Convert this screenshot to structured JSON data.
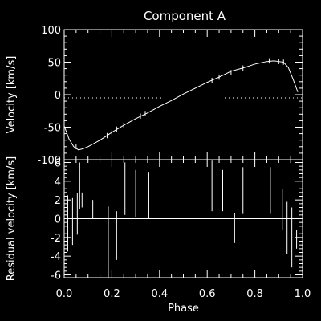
{
  "figure": {
    "title": "Component A",
    "background": "#000000",
    "foreground": "#ffffff"
  },
  "chart_data": [
    {
      "type": "line",
      "title": "Component A",
      "xlabel": "",
      "ylabel": "Velocity [km/s]",
      "xlim": [
        0.0,
        1.0
      ],
      "ylim": [
        -100,
        100
      ],
      "y_ticks": [
        -100,
        -50,
        0,
        50,
        100
      ],
      "x_ticks": [
        0.0,
        0.2,
        0.4,
        0.6,
        0.8,
        1.0
      ],
      "x_tick_labels_shown": false,
      "reference_line": {
        "y": -5,
        "style": "dotted"
      },
      "series": [
        {
          "values_x": [
            0.0,
            0.02,
            0.04,
            0.06,
            0.08,
            0.1,
            0.15,
            0.2,
            0.25,
            0.3,
            0.35,
            0.4,
            0.45,
            0.5,
            0.55,
            0.6,
            0.65,
            0.7,
            0.75,
            0.8,
            0.85,
            0.88,
            0.9,
            0.92,
            0.94,
            0.96,
            0.98
          ],
          "values_y": [
            -48,
            -68,
            -80,
            -85,
            -83,
            -80,
            -70,
            -58,
            -47,
            -37,
            -28,
            -18,
            -9,
            1,
            10,
            19,
            27,
            36,
            41,
            47,
            51,
            52,
            51,
            50,
            42,
            24,
            4
          ]
        }
      ],
      "error_bars": [
        {
          "x": 0.05,
          "y": -80,
          "err": 4
        },
        {
          "x": 0.18,
          "y": -63,
          "err": 4
        },
        {
          "x": 0.2,
          "y": -58,
          "err": 4
        },
        {
          "x": 0.22,
          "y": -53,
          "err": 4
        },
        {
          "x": 0.25,
          "y": -47,
          "err": 4
        },
        {
          "x": 0.32,
          "y": -33,
          "err": 4
        },
        {
          "x": 0.34,
          "y": -29,
          "err": 4
        },
        {
          "x": 0.62,
          "y": 22,
          "err": 4
        },
        {
          "x": 0.65,
          "y": 27,
          "err": 4
        },
        {
          "x": 0.7,
          "y": 34,
          "err": 4
        },
        {
          "x": 0.75,
          "y": 41,
          "err": 4
        },
        {
          "x": 0.86,
          "y": 52,
          "err": 4
        },
        {
          "x": 0.9,
          "y": 51,
          "err": 4
        },
        {
          "x": 0.92,
          "y": 50,
          "err": 4
        }
      ]
    },
    {
      "type": "scatter",
      "title": "",
      "xlabel": "Phase",
      "ylabel": "Residual velocity [km/s]",
      "xlim": [
        0.0,
        1.0
      ],
      "ylim": [
        -6.3,
        6.3
      ],
      "y_ticks": [
        -6,
        -4,
        -2,
        0,
        2,
        4,
        6
      ],
      "x_ticks": [
        0.0,
        0.2,
        0.4,
        0.6,
        0.8,
        1.0
      ],
      "reference_line": {
        "y": 0,
        "style": "solid"
      },
      "error_bars": [
        {
          "x": 0.015,
          "y": -0.5,
          "err": 3.0
        },
        {
          "x": 0.035,
          "y": -0.3,
          "err": 2.5
        },
        {
          "x": 0.055,
          "y": 0.5,
          "err": 2.2
        },
        {
          "x": 0.065,
          "y": 3.5,
          "err": 2.5
        },
        {
          "x": 0.075,
          "y": 2.0,
          "err": 0.8
        },
        {
          "x": 0.12,
          "y": 1.0,
          "err": 1.0
        },
        {
          "x": 0.185,
          "y": -2.5,
          "err": 3.8
        },
        {
          "x": 0.22,
          "y": -1.8,
          "err": 2.6
        },
        {
          "x": 0.255,
          "y": 3.2,
          "err": 2.8
        },
        {
          "x": 0.3,
          "y": 2.7,
          "err": 2.5
        },
        {
          "x": 0.355,
          "y": 2.5,
          "err": 2.5
        },
        {
          "x": 0.62,
          "y": 3.5,
          "err": 2.7
        },
        {
          "x": 0.665,
          "y": 3.0,
          "err": 2.2
        },
        {
          "x": 0.715,
          "y": -1.0,
          "err": 1.6
        },
        {
          "x": 0.75,
          "y": 3.0,
          "err": 2.5
        },
        {
          "x": 0.865,
          "y": 3.0,
          "err": 2.5
        },
        {
          "x": 0.915,
          "y": 1.0,
          "err": 2.2
        },
        {
          "x": 0.935,
          "y": -1.0,
          "err": 2.8
        },
        {
          "x": 0.955,
          "y": -2.0,
          "err": 3.2
        },
        {
          "x": 0.975,
          "y": -2.2,
          "err": 1.0
        }
      ]
    }
  ]
}
